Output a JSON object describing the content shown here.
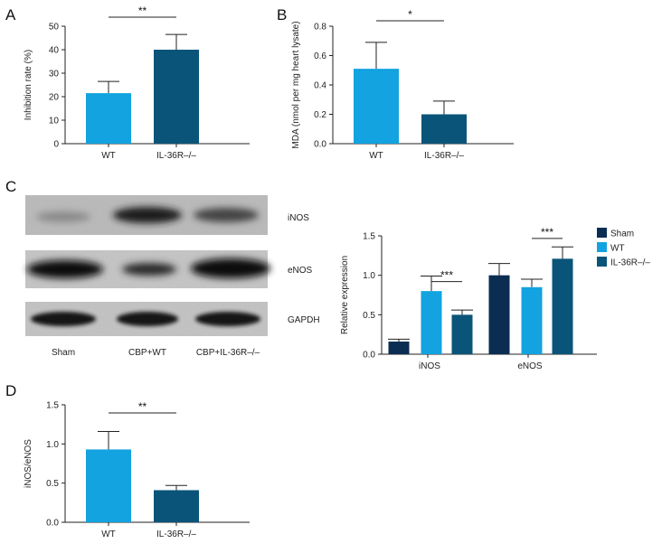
{
  "panels": {
    "A": "A",
    "B": "B",
    "C": "C",
    "D": "D"
  },
  "colors": {
    "sham": "#0b2d52",
    "wt": "#12a3e0",
    "ko": "#0b5479"
  },
  "blot": {
    "bands": [
      "iNOS",
      "eNOS",
      "GAPDH"
    ],
    "lanes": [
      "Sham",
      "CBP+WT",
      "CBP+IL-36R–/–"
    ]
  },
  "chart_data": [
    {
      "id": "A",
      "type": "bar",
      "categories": [
        "WT",
        "IL-36R–/–"
      ],
      "values": [
        21.5,
        40
      ],
      "errors": [
        5,
        6.5
      ],
      "colors": [
        "#12a3e0",
        "#0b5479"
      ],
      "xlabel": "",
      "ylabel": "Inhibition rate (%)",
      "ylim": [
        0,
        50
      ],
      "yticks": [
        "0",
        "10",
        "20",
        "30",
        "40",
        "50"
      ],
      "significance": "**"
    },
    {
      "id": "B",
      "type": "bar",
      "categories": [
        "WT",
        "IL-36R–/–"
      ],
      "values": [
        0.51,
        0.2
      ],
      "errors": [
        0.18,
        0.09
      ],
      "colors": [
        "#12a3e0",
        "#0b5479"
      ],
      "xlabel": "",
      "ylabel": "MDA (nmol per mg heart lysate)",
      "ylim": [
        0,
        0.8
      ],
      "yticks": [
        "0.0",
        "0.2",
        "0.4",
        "0.6",
        "0.8"
      ],
      "significance": "*"
    },
    {
      "id": "C",
      "type": "bar",
      "categories": [
        "iNOS",
        "eNOS"
      ],
      "series": [
        {
          "name": "Sham",
          "values": [
            0.16,
            1.0
          ],
          "errors": [
            0.03,
            0.15
          ]
        },
        {
          "name": "WT",
          "values": [
            0.8,
            0.85
          ],
          "errors": [
            0.19,
            0.1
          ]
        },
        {
          "name": "IL-36R–/–",
          "values": [
            0.5,
            1.21
          ],
          "errors": [
            0.06,
            0.15
          ]
        }
      ],
      "colors": [
        "#0b2d52",
        "#12a3e0",
        "#0b5479"
      ],
      "xlabel": "",
      "ylabel": "Relative expression",
      "ylim": [
        0,
        1.5
      ],
      "yticks": [
        "0.0",
        "0.5",
        "1.0",
        "1.5"
      ],
      "significance": [
        "***",
        "***"
      ],
      "legend": "top-right"
    },
    {
      "id": "D",
      "type": "bar",
      "categories": [
        "WT",
        "IL-36R–/–"
      ],
      "values": [
        0.93,
        0.41
      ],
      "errors": [
        0.23,
        0.06
      ],
      "colors": [
        "#12a3e0",
        "#0b5479"
      ],
      "xlabel": "",
      "ylabel": "iNOS/eNOS",
      "ylim": [
        0,
        1.5
      ],
      "yticks": [
        "0.0",
        "0.5",
        "1.0",
        "1.5"
      ],
      "significance": "**"
    }
  ]
}
